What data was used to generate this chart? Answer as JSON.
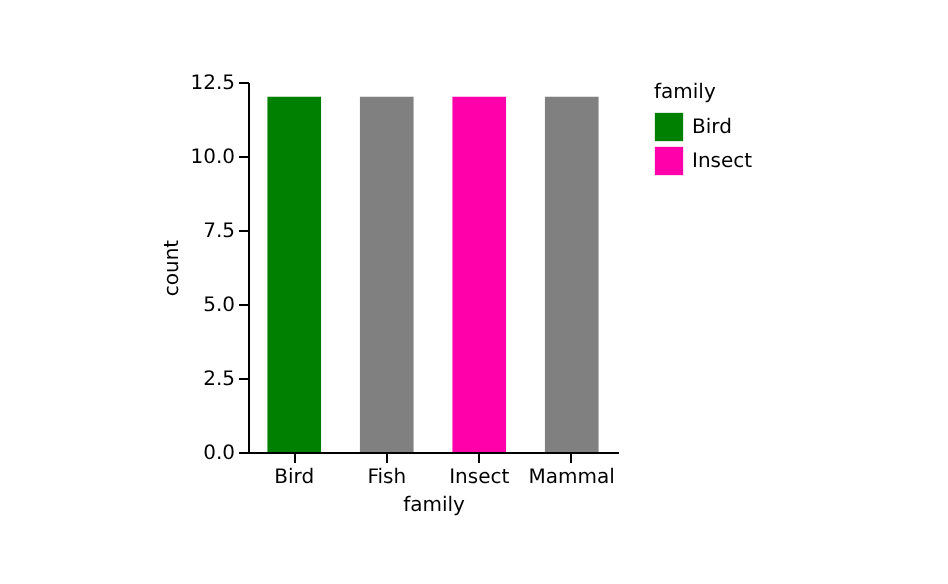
{
  "chart_data": {
    "type": "bar",
    "xlabel": "family",
    "ylabel": "count",
    "legend_title": "family",
    "categories": [
      "Bird",
      "Fish",
      "Insect",
      "Mammal"
    ],
    "series": [
      {
        "name": "Bird",
        "color": "#008000",
        "values": [
          12,
          null,
          null,
          null
        ]
      },
      {
        "name": "Insect",
        "color": "#ff00aa",
        "values": [
          null,
          null,
          12,
          null
        ]
      },
      {
        "color": "#808080",
        "values": [
          null,
          12,
          null,
          12
        ]
      }
    ],
    "ylim": [
      0,
      12.5
    ],
    "yticks": [
      {
        "value": 0,
        "label": "0.0"
      },
      {
        "value": 2.5,
        "label": "2.5"
      },
      {
        "value": 5,
        "label": "5.0"
      },
      {
        "value": 7.5,
        "label": "7.5"
      },
      {
        "value": 10,
        "label": "10.0"
      },
      {
        "value": 12.5,
        "label": "12.5"
      }
    ],
    "grid": false,
    "legend": "right"
  }
}
